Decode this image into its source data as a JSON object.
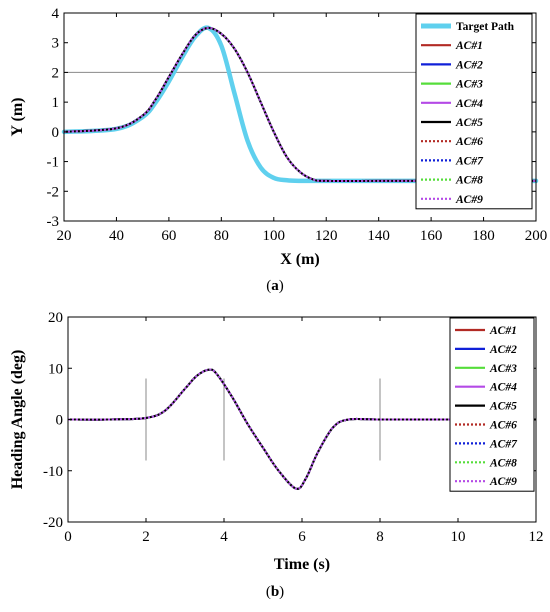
{
  "chart_data": [
    {
      "type": "line",
      "caption": "(a)",
      "xlabel": "X (m)",
      "ylabel": "Y (m)",
      "xlim": [
        20,
        200
      ],
      "ylim": [
        -3,
        4
      ],
      "xticks": [
        20,
        40,
        60,
        80,
        100,
        120,
        140,
        160,
        180,
        200
      ],
      "yticks": [
        4,
        3,
        2,
        1,
        0,
        -1,
        -2,
        -3
      ],
      "grid": false,
      "reference_lines": [
        {
          "axis": "y",
          "value": 2
        }
      ],
      "legend_position": "top-right",
      "series": [
        {
          "name": "Target Path",
          "color": "#5fd0ee",
          "style": "solid-thick",
          "x": [
            20,
            40,
            50,
            55,
            60,
            65,
            70,
            75,
            80,
            85,
            90,
            95,
            100,
            105,
            110,
            120,
            140,
            160,
            180,
            200
          ],
          "y": [
            0,
            0.1,
            0.5,
            1.0,
            1.7,
            2.5,
            3.2,
            3.5,
            2.9,
            1.3,
            -0.3,
            -1.2,
            -1.55,
            -1.63,
            -1.65,
            -1.65,
            -1.65,
            -1.65,
            -1.65,
            -1.65
          ]
        },
        {
          "name": "AC#1",
          "color": "#b22a24",
          "style": "solid",
          "x": [
            20,
            40,
            50,
            55,
            60,
            65,
            70,
            75,
            80,
            85,
            90,
            95,
            100,
            105,
            110,
            115,
            120,
            140,
            160,
            180,
            200
          ],
          "y": [
            0,
            0.12,
            0.55,
            1.1,
            1.85,
            2.6,
            3.25,
            3.5,
            3.3,
            2.8,
            2.0,
            1.0,
            0.0,
            -0.85,
            -1.35,
            -1.6,
            -1.65,
            -1.65,
            -1.65,
            -1.65,
            -1.65
          ]
        },
        {
          "name": "AC#2",
          "color": "#1020d8",
          "style": "solid",
          "x": [
            20,
            40,
            50,
            55,
            60,
            65,
            70,
            75,
            80,
            85,
            90,
            95,
            100,
            105,
            110,
            115,
            120,
            140,
            160,
            180,
            200
          ],
          "y": [
            0,
            0.12,
            0.55,
            1.1,
            1.85,
            2.6,
            3.25,
            3.5,
            3.3,
            2.8,
            2.0,
            1.0,
            0.0,
            -0.85,
            -1.35,
            -1.6,
            -1.65,
            -1.65,
            -1.65,
            -1.65,
            -1.65
          ]
        },
        {
          "name": "AC#3",
          "color": "#55dd3a",
          "style": "solid",
          "x": [
            20,
            40,
            50,
            55,
            60,
            65,
            70,
            75,
            80,
            85,
            90,
            95,
            100,
            105,
            110,
            115,
            120,
            140,
            160,
            180,
            200
          ],
          "y": [
            0,
            0.12,
            0.55,
            1.1,
            1.85,
            2.6,
            3.25,
            3.5,
            3.3,
            2.8,
            2.0,
            1.0,
            0.0,
            -0.85,
            -1.35,
            -1.6,
            -1.65,
            -1.65,
            -1.65,
            -1.65,
            -1.65
          ]
        },
        {
          "name": "AC#4",
          "color": "#b44ae6",
          "style": "solid",
          "x": [
            20,
            40,
            50,
            55,
            60,
            65,
            70,
            75,
            80,
            85,
            90,
            95,
            100,
            105,
            110,
            115,
            120,
            140,
            160,
            180,
            200
          ],
          "y": [
            0,
            0.12,
            0.55,
            1.1,
            1.85,
            2.6,
            3.25,
            3.5,
            3.3,
            2.8,
            2.0,
            1.0,
            0.0,
            -0.85,
            -1.35,
            -1.6,
            -1.65,
            -1.65,
            -1.65,
            -1.65,
            -1.65
          ]
        },
        {
          "name": "AC#5",
          "color": "#000000",
          "style": "solid",
          "x": [
            20,
            40,
            50,
            55,
            60,
            65,
            70,
            75,
            80,
            85,
            90,
            95,
            100,
            105,
            110,
            115,
            120,
            140,
            160,
            180,
            200
          ],
          "y": [
            0,
            0.12,
            0.55,
            1.1,
            1.85,
            2.6,
            3.25,
            3.5,
            3.3,
            2.8,
            2.0,
            1.0,
            0.0,
            -0.85,
            -1.35,
            -1.6,
            -1.65,
            -1.65,
            -1.65,
            -1.65,
            -1.65
          ]
        },
        {
          "name": "AC#6",
          "color": "#b22a24",
          "style": "dotted",
          "x": [
            20,
            40,
            50,
            55,
            60,
            65,
            70,
            75,
            80,
            85,
            90,
            95,
            100,
            105,
            110,
            115,
            120,
            140,
            160,
            180,
            200
          ],
          "y": [
            0,
            0.12,
            0.55,
            1.1,
            1.85,
            2.6,
            3.25,
            3.5,
            3.3,
            2.8,
            2.0,
            1.0,
            0.0,
            -0.85,
            -1.35,
            -1.6,
            -1.65,
            -1.65,
            -1.65,
            -1.65,
            -1.65
          ]
        },
        {
          "name": "AC#7",
          "color": "#1020d8",
          "style": "dotted",
          "x": [
            20,
            40,
            50,
            55,
            60,
            65,
            70,
            75,
            80,
            85,
            90,
            95,
            100,
            105,
            110,
            115,
            120,
            140,
            160,
            180,
            200
          ],
          "y": [
            0,
            0.12,
            0.55,
            1.1,
            1.85,
            2.6,
            3.25,
            3.5,
            3.3,
            2.8,
            2.0,
            1.0,
            0.0,
            -0.85,
            -1.35,
            -1.6,
            -1.65,
            -1.65,
            -1.65,
            -1.65,
            -1.65
          ]
        },
        {
          "name": "AC#8",
          "color": "#55dd3a",
          "style": "dotted",
          "x": [
            20,
            40,
            50,
            55,
            60,
            65,
            70,
            75,
            80,
            85,
            90,
            95,
            100,
            105,
            110,
            115,
            120,
            140,
            160,
            180,
            200
          ],
          "y": [
            0,
            0.12,
            0.55,
            1.1,
            1.85,
            2.6,
            3.25,
            3.5,
            3.3,
            2.8,
            2.0,
            1.0,
            0.0,
            -0.85,
            -1.35,
            -1.6,
            -1.65,
            -1.65,
            -1.65,
            -1.65,
            -1.65
          ]
        },
        {
          "name": "AC#9",
          "color": "#b44ae6",
          "style": "dotted",
          "x": [
            20,
            40,
            50,
            55,
            60,
            65,
            70,
            75,
            80,
            85,
            90,
            95,
            100,
            105,
            110,
            115,
            120,
            140,
            160,
            180,
            200
          ],
          "y": [
            0,
            0.12,
            0.55,
            1.1,
            1.85,
            2.6,
            3.25,
            3.5,
            3.3,
            2.8,
            2.0,
            1.0,
            0.0,
            -0.85,
            -1.35,
            -1.6,
            -1.65,
            -1.65,
            -1.65,
            -1.65,
            -1.65
          ]
        }
      ]
    },
    {
      "type": "line",
      "caption": "(b)",
      "xlabel": "Time (s)",
      "ylabel": "Heading Angle (deg)",
      "xlim": [
        0,
        12
      ],
      "ylim": [
        -20,
        20
      ],
      "xticks": [
        0,
        2,
        4,
        6,
        8,
        10,
        12
      ],
      "yticks": [
        20,
        10,
        0,
        -10,
        -20
      ],
      "grid": false,
      "reference_lines": [
        {
          "axis": "x",
          "value": 2
        },
        {
          "axis": "x",
          "value": 4
        },
        {
          "axis": "x",
          "value": 8
        }
      ],
      "legend_position": "top-right",
      "series": [
        {
          "name": "AC#1",
          "color": "#b22a24",
          "style": "solid",
          "x": [
            0,
            1,
            2,
            2.5,
            3,
            3.3,
            3.6,
            3.8,
            4.2,
            4.6,
            5,
            5.4,
            5.85,
            6.1,
            6.4,
            6.8,
            7.2,
            8,
            10,
            12
          ],
          "y": [
            0,
            0,
            0.3,
            1.8,
            6.0,
            8.5,
            9.7,
            9.0,
            4.5,
            -0.8,
            -5.5,
            -10.0,
            -13.5,
            -11.5,
            -6.5,
            -1.5,
            0,
            0,
            0,
            0
          ]
        },
        {
          "name": "AC#2",
          "color": "#1020d8",
          "style": "solid",
          "x": [
            0,
            1,
            2,
            2.5,
            3,
            3.3,
            3.6,
            3.8,
            4.2,
            4.6,
            5,
            5.4,
            5.85,
            6.1,
            6.4,
            6.8,
            7.2,
            8,
            10,
            12
          ],
          "y": [
            0,
            0,
            0.3,
            1.8,
            6.0,
            8.5,
            9.7,
            9.0,
            4.5,
            -0.8,
            -5.5,
            -10.0,
            -13.5,
            -11.5,
            -6.5,
            -1.5,
            0,
            0,
            0,
            0
          ]
        },
        {
          "name": "AC#3",
          "color": "#55dd3a",
          "style": "solid",
          "x": [
            0,
            1,
            2,
            2.5,
            3,
            3.3,
            3.6,
            3.8,
            4.2,
            4.6,
            5,
            5.4,
            5.85,
            6.1,
            6.4,
            6.8,
            7.2,
            8,
            10,
            12
          ],
          "y": [
            0,
            0,
            0.3,
            1.8,
            6.0,
            8.5,
            9.7,
            9.0,
            4.5,
            -0.8,
            -5.5,
            -10.0,
            -13.5,
            -11.5,
            -6.5,
            -1.5,
            0,
            0,
            0,
            0
          ]
        },
        {
          "name": "AC#4",
          "color": "#b44ae6",
          "style": "solid",
          "x": [
            0,
            1,
            2,
            2.5,
            3,
            3.3,
            3.6,
            3.8,
            4.2,
            4.6,
            5,
            5.4,
            5.85,
            6.1,
            6.4,
            6.8,
            7.2,
            8,
            10,
            12
          ],
          "y": [
            0,
            0,
            0.3,
            1.8,
            6.0,
            8.5,
            9.7,
            9.0,
            4.5,
            -0.8,
            -5.5,
            -10.0,
            -13.5,
            -11.5,
            -6.5,
            -1.5,
            0,
            0,
            0,
            0
          ]
        },
        {
          "name": "AC#5",
          "color": "#000000",
          "style": "solid",
          "x": [
            0,
            1,
            2,
            2.5,
            3,
            3.3,
            3.6,
            3.8,
            4.2,
            4.6,
            5,
            5.4,
            5.85,
            6.1,
            6.4,
            6.8,
            7.2,
            8,
            10,
            12
          ],
          "y": [
            0,
            0,
            0.3,
            1.8,
            6.0,
            8.5,
            9.7,
            9.0,
            4.5,
            -0.8,
            -5.5,
            -10.0,
            -13.5,
            -11.5,
            -6.5,
            -1.5,
            0,
            0,
            0,
            0
          ]
        },
        {
          "name": "AC#6",
          "color": "#b22a24",
          "style": "dotted",
          "x": [
            0,
            1,
            2,
            2.5,
            3,
            3.3,
            3.6,
            3.8,
            4.2,
            4.6,
            5,
            5.4,
            5.85,
            6.1,
            6.4,
            6.8,
            7.2,
            8,
            10,
            12
          ],
          "y": [
            0,
            0,
            0.3,
            1.8,
            6.0,
            8.5,
            9.7,
            9.0,
            4.5,
            -0.8,
            -5.5,
            -10.0,
            -13.5,
            -11.5,
            -6.5,
            -1.5,
            0,
            0,
            0,
            0
          ]
        },
        {
          "name": "AC#7",
          "color": "#1020d8",
          "style": "dotted",
          "x": [
            0,
            1,
            2,
            2.5,
            3,
            3.3,
            3.6,
            3.8,
            4.2,
            4.6,
            5,
            5.4,
            5.85,
            6.1,
            6.4,
            6.8,
            7.2,
            8,
            10,
            12
          ],
          "y": [
            0,
            0,
            0.3,
            1.8,
            6.0,
            8.5,
            9.7,
            9.0,
            4.5,
            -0.8,
            -5.5,
            -10.0,
            -13.5,
            -11.5,
            -6.5,
            -1.5,
            0,
            0,
            0,
            0
          ]
        },
        {
          "name": "AC#8",
          "color": "#55dd3a",
          "style": "dotted",
          "x": [
            0,
            1,
            2,
            2.5,
            3,
            3.3,
            3.6,
            3.8,
            4.2,
            4.6,
            5,
            5.4,
            5.85,
            6.1,
            6.4,
            6.8,
            7.2,
            8,
            10,
            12
          ],
          "y": [
            0,
            0,
            0.3,
            1.8,
            6.0,
            8.5,
            9.7,
            9.0,
            4.5,
            -0.8,
            -5.5,
            -10.0,
            -13.5,
            -11.5,
            -6.5,
            -1.5,
            0,
            0,
            0,
            0
          ]
        },
        {
          "name": "AC#9",
          "color": "#b44ae6",
          "style": "dotted",
          "x": [
            0,
            1,
            2,
            2.5,
            3,
            3.3,
            3.6,
            3.8,
            4.2,
            4.6,
            5,
            5.4,
            5.85,
            6.1,
            6.4,
            6.8,
            7.2,
            8,
            10,
            12
          ],
          "y": [
            0,
            0,
            0.3,
            1.8,
            6.0,
            8.5,
            9.7,
            9.0,
            4.5,
            -0.8,
            -5.5,
            -10.0,
            -13.5,
            -11.5,
            -6.5,
            -1.5,
            0,
            0,
            0,
            0
          ]
        }
      ]
    }
  ]
}
